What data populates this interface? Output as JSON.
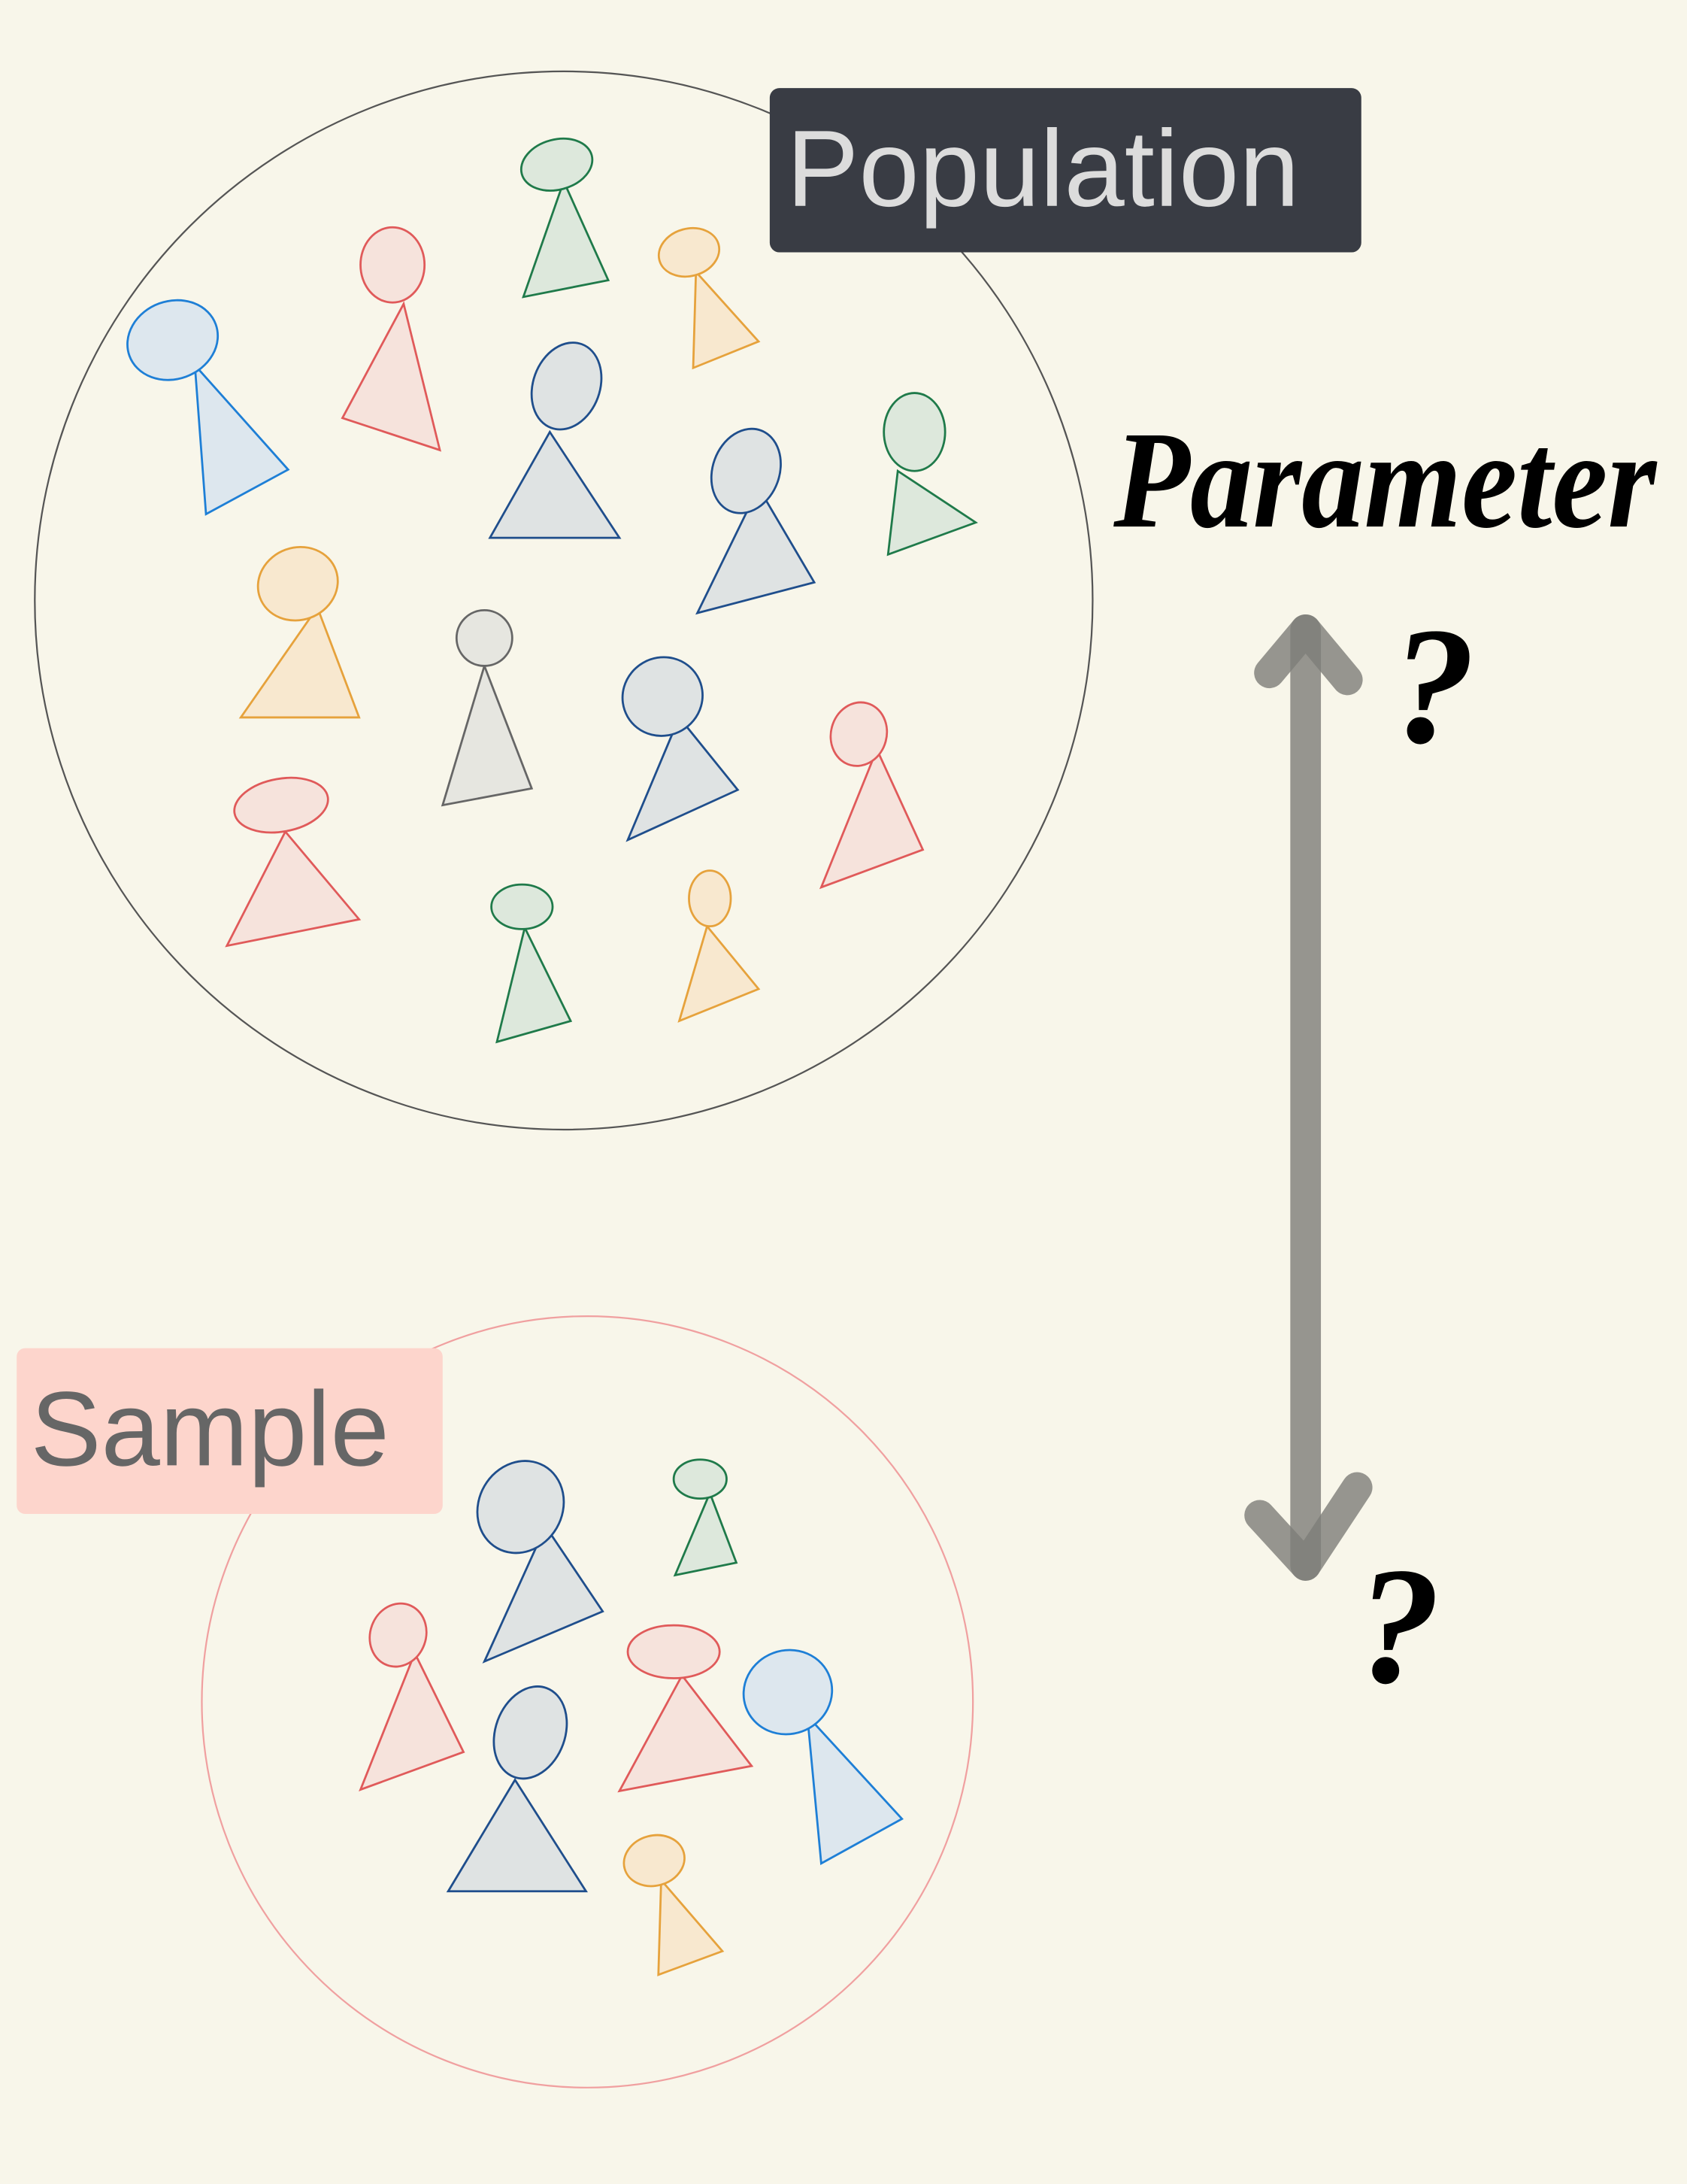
{
  "labels": {
    "population": "Population",
    "sample": "Sample",
    "parameter": "Parameter"
  },
  "question_marks": [
    "?",
    "?"
  ]
}
